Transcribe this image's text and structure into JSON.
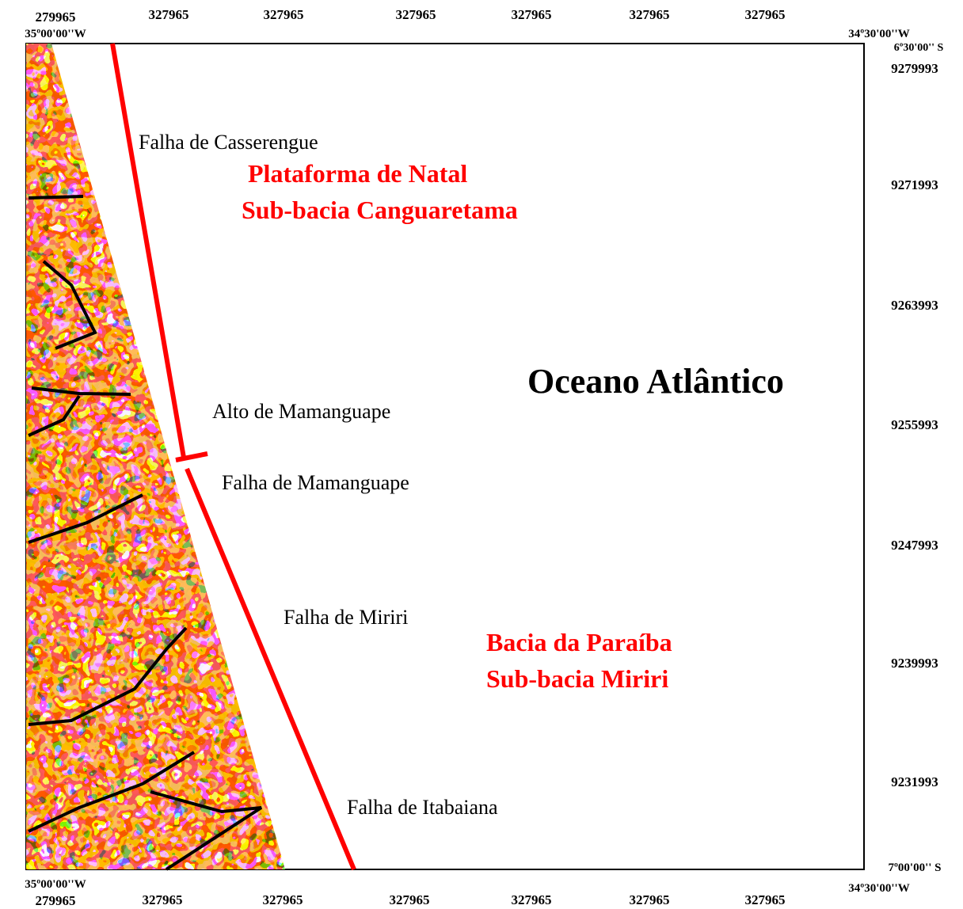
{
  "corners": {
    "top_left": "35º00'00''W",
    "top_right": "34º30'00''W",
    "right_top": "6º30'00'' S",
    "right_bottom": "7º00'00'' S",
    "bottom_left": "35º00'00''W",
    "bottom_right": "34º30'00''W"
  },
  "top_labels": [
    "279965",
    "327965",
    "327965",
    "327965",
    "327965",
    "327965",
    "327965"
  ],
  "bottom_labels": [
    "279965",
    "327965",
    "327965",
    "327965",
    "327965",
    "327965",
    "327965"
  ],
  "right_labels": [
    "9279993",
    "9271993",
    "9263993",
    "9255993",
    "9247993",
    "9239993",
    "9231993"
  ],
  "map_labels": {
    "falha_casserengue": "Falha de Casserengue",
    "plataforma_natal": "Plataforma de Natal",
    "sub_bacia_canguaretama": "Sub-bacia Canguaretama",
    "oceano": "Oceano Atlântico",
    "alto_mamanguape": "Alto de Mamanguape",
    "falha_mamanguape": "Falha de Mamanguape",
    "falha_miriri": "Falha de Miriri",
    "bacia_paraiba": "Bacia da Paraíba",
    "sub_bacia_miriri": "Sub-bacia Miriri",
    "falha_itabaiana": "Falha de Itabaiana"
  }
}
